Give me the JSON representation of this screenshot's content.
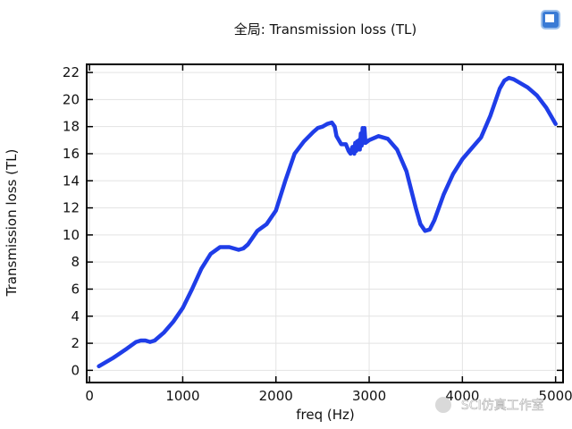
{
  "chart_data": {
    "type": "line",
    "title": "全局: Transmission loss (TL)",
    "xlabel": "freq (Hz)",
    "ylabel": "Transmission loss (TL)",
    "xlim": [
      -30,
      5080
    ],
    "ylim": [
      -0.9,
      22.6
    ],
    "x_ticks": [
      0,
      1000,
      2000,
      3000,
      4000,
      5000
    ],
    "y_ticks": [
      0,
      2,
      4,
      6,
      8,
      10,
      12,
      14,
      16,
      18,
      20,
      22
    ],
    "grid": true,
    "line_color": "#1f3de8",
    "series": [
      {
        "x": [
          100,
          250,
          400,
          500,
          550,
          600,
          650,
          700,
          800,
          900,
          1000,
          1100,
          1200,
          1300,
          1400,
          1500,
          1600,
          1650,
          1700,
          1800,
          1900,
          2000,
          2100,
          2200,
          2300,
          2400,
          2450,
          2500,
          2550,
          2600,
          2630,
          2650,
          2700,
          2750,
          2780,
          2800,
          2820,
          2840,
          2850,
          2860,
          2870,
          2880,
          2890,
          2900,
          2910,
          2920,
          2930,
          2940,
          2950,
          2960,
          2980,
          3000,
          3100,
          3200,
          3300,
          3400,
          3500,
          3550,
          3600,
          3650,
          3700,
          3800,
          3900,
          4000,
          4100,
          4200,
          4300,
          4400,
          4450,
          4500,
          4550,
          4600,
          4700,
          4800,
          4900,
          5000
        ],
        "y": [
          0.3,
          0.9,
          1.6,
          2.1,
          2.2,
          2.2,
          2.1,
          2.2,
          2.8,
          3.6,
          4.6,
          6.0,
          7.5,
          8.6,
          9.1,
          9.1,
          8.9,
          9.0,
          9.3,
          10.3,
          10.8,
          11.8,
          14.0,
          16.0,
          16.9,
          17.6,
          17.9,
          18.0,
          18.2,
          18.3,
          18.0,
          17.3,
          16.7,
          16.7,
          16.2,
          16.0,
          16.5,
          16.0,
          16.8,
          16.2,
          16.9,
          16.3,
          17.0,
          16.3,
          17.5,
          16.6,
          17.9,
          16.8,
          17.9,
          16.8,
          16.9,
          17.0,
          17.3,
          17.1,
          16.3,
          14.7,
          12.0,
          10.8,
          10.3,
          10.4,
          11.1,
          13.0,
          14.5,
          15.6,
          16.4,
          17.2,
          18.8,
          20.8,
          21.4,
          21.6,
          21.5,
          21.3,
          20.9,
          20.3,
          19.4,
          18.2
        ]
      }
    ]
  },
  "watermark": "SCI仿真工作室"
}
